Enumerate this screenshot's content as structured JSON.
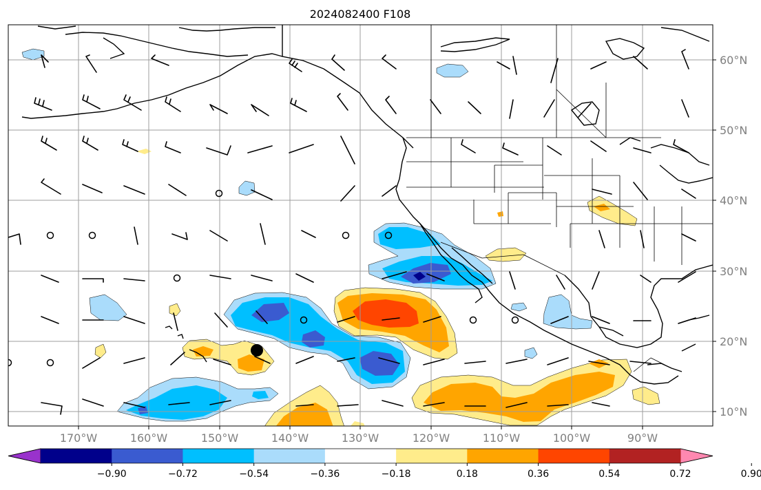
{
  "title": "2024082400 F108",
  "lat_labels": [
    "60°N",
    "50°N",
    "40°N",
    "30°N",
    "20°N",
    "10°N"
  ],
  "lon_labels": [
    "170°W",
    "160°W",
    "150°W",
    "140°W",
    "130°W",
    "120°W",
    "110°W",
    "100°W",
    "90°W"
  ],
  "colorbar": {
    "tick_labels": [
      "−0.90",
      "−0.72",
      "−0.54",
      "−0.36",
      "−0.18",
      "0.18",
      "0.36",
      "0.54",
      "0.72",
      "0.90"
    ],
    "colors": [
      "#9932cc",
      "#00008b",
      "#3a5bd0",
      "#00bfff",
      "#aadcfb",
      "#ffffff",
      "#ffec8b",
      "#ffa500",
      "#ff4500",
      "#b22222",
      "#ff88b0"
    ]
  },
  "fill_colors": {
    "light_blue": "#aadcfb",
    "blue": "#00bfff",
    "royal_blue": "#3a5bd0",
    "navy": "#00008b",
    "yellow": "#ffec8b",
    "orange": "#ffa500",
    "red_orange": "#ff4500"
  },
  "marker": {
    "label": "storm position marker"
  }
}
